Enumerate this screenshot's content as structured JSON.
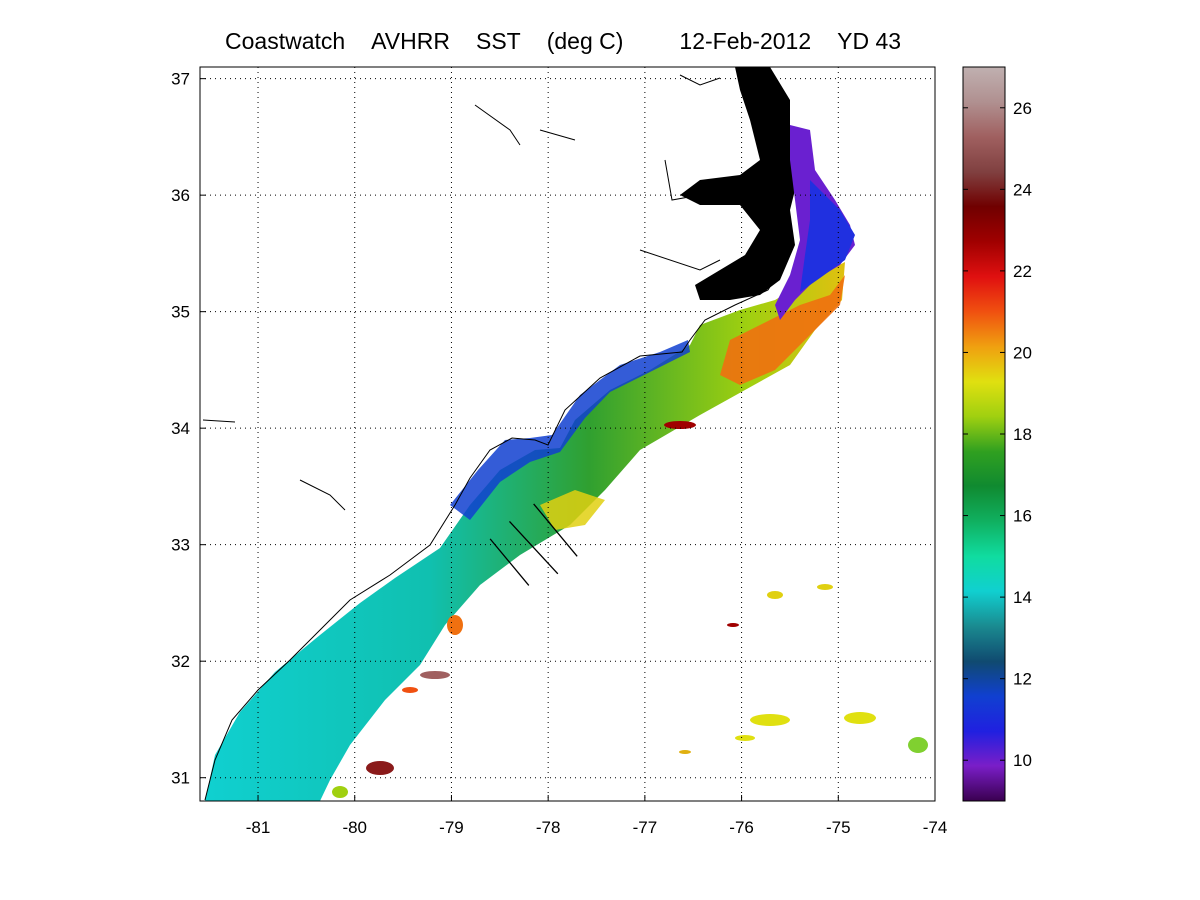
{
  "title": {
    "product": "Coastwatch",
    "sensor": "AVHRR",
    "variable": "SST",
    "units": "(deg C)",
    "date": "12-Feb-2012",
    "yearday": "YD 43"
  },
  "map": {
    "lon_range": [
      -81.6,
      -74.0
    ],
    "lat_range": [
      30.8,
      37.1
    ],
    "lon_ticks": [
      "-81",
      "-80",
      "-79",
      "-78",
      "-77",
      "-76",
      "-75",
      "-74"
    ],
    "lat_ticks": [
      "31",
      "32",
      "33",
      "34",
      "35",
      "36",
      "37"
    ],
    "grid": "dotted"
  },
  "colorbar": {
    "range": [
      9,
      27
    ],
    "tick_labels": [
      "10",
      "12",
      "14",
      "16",
      "18",
      "20",
      "22",
      "24",
      "26"
    ],
    "colormap": [
      "#3a0050",
      "#7a1ec8",
      "#2020e0",
      "#1040d0",
      "#104a70",
      "#1a8a90",
      "#10d0d0",
      "#10dca0",
      "#10b060",
      "#108a30",
      "#30a020",
      "#a0d010",
      "#e0e010",
      "#f0a010",
      "#f05010",
      "#e01010",
      "#a00000",
      "#700000",
      "#804040",
      "#a06060",
      "#b09090",
      "#c0b0b0"
    ]
  },
  "section_lines": [
    {
      "start": [
        -78.6,
        33.05
      ],
      "end": [
        -78.2,
        32.65
      ]
    },
    {
      "start": [
        -78.4,
        33.2
      ],
      "end": [
        -77.9,
        32.75
      ]
    },
    {
      "start": [
        -78.15,
        33.35
      ],
      "end": [
        -77.7,
        32.9
      ]
    }
  ]
}
